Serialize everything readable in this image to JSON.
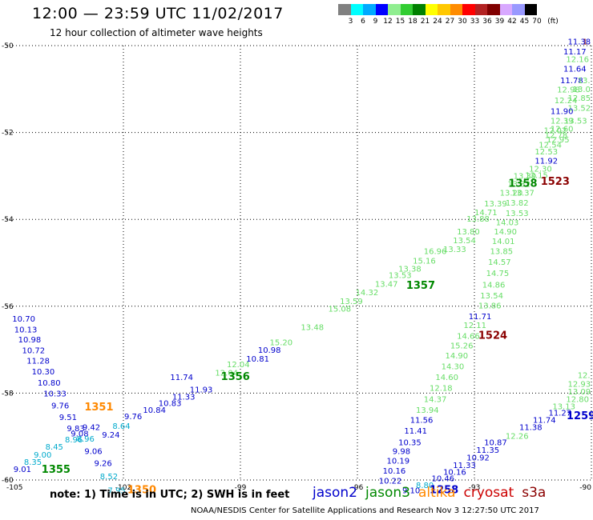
{
  "header": {
    "title": "12:00 — 23:59 UTC 11/02/2017",
    "subtitle": "12 hour collection of altimeter wave heights"
  },
  "color_scale": {
    "labels": [
      "3",
      "6",
      "9",
      "12",
      "15",
      "18",
      "21",
      "24",
      "27",
      "30",
      "33",
      "36",
      "39",
      "42",
      "45",
      "70"
    ],
    "unit": "(ft)",
    "colors": [
      "#808080",
      "#00ffff",
      "#00aaff",
      "#0000ff",
      "#90ee90",
      "#32cd32",
      "#008000",
      "#ffff00",
      "#ffc800",
      "#ff8c00",
      "#ff0000",
      "#b22222",
      "#800000",
      "#d8a8ff",
      "#9999ff",
      "#000000"
    ]
  },
  "chart_data": {
    "type": "map",
    "xlim": [
      -105,
      -90
    ],
    "ylim": [
      -60,
      -50
    ],
    "x_ticks": [
      -105,
      -102,
      -99,
      -96,
      -93,
      -90
    ],
    "y_ticks": [
      -50,
      -52,
      -54,
      -56,
      -58,
      -60
    ],
    "x_tick_labels": [
      "-105",
      "-102",
      "-99",
      "-96",
      "-93",
      "-90"
    ],
    "y_tick_labels": [
      "-50",
      "-52",
      "-54",
      "-56",
      "-58",
      "-60"
    ],
    "grid": "dotted",
    "track_colors": {
      "jason2": "#0000cc",
      "jason3": "#008800",
      "altika": "#ff8800",
      "cryosat": "#cc0000",
      "s3a": "#8b0000",
      "lightgreen": "#66dd66",
      "cyan": "#00aacc"
    },
    "points": [
      {
        "text": "1.",
        "x": -90.08,
        "y": -49.97,
        "track": "s3a"
      },
      {
        "text": "11.38",
        "x": -90.6,
        "y": -49.97,
        "track": "jason2"
      },
      {
        "text": "11.17",
        "x": -90.72,
        "y": -50.2,
        "track": "jason2"
      },
      {
        "text": "12.16",
        "x": -90.65,
        "y": -50.38,
        "track": "lightgreen"
      },
      {
        "text": "11.64",
        "x": -90.72,
        "y": -50.6,
        "track": "jason2"
      },
      {
        "text": "11.78",
        "x": -90.8,
        "y": -50.87,
        "track": "jason2"
      },
      {
        "text": "13.",
        "x": -89.98,
        "y": -50.87,
        "track": "lightgreen"
      },
      {
        "text": "12.98",
        "x": -90.88,
        "y": -51.08,
        "track": "lightgreen"
      },
      {
        "text": "13.0",
        "x": -90.1,
        "y": -51.07,
        "track": "lightgreen"
      },
      {
        "text": "12.85",
        "x": -90.25,
        "y": -51.27,
        "track": "lightgreen"
      },
      {
        "text": "12.24",
        "x": -90.95,
        "y": -51.33,
        "track": "lightgreen"
      },
      {
        "text": "13.52",
        "x": -90.5,
        "y": -51.5,
        "track": "lightgreen"
      },
      {
        "text": "11.90",
        "x": -91.05,
        "y": -51.57,
        "track": "jason2"
      },
      {
        "text": "12.39",
        "x": -91.05,
        "y": -51.8,
        "track": "lightgreen"
      },
      {
        "text": "13.53",
        "x": -90.7,
        "y": -51.8,
        "track": "lightgreen"
      },
      {
        "text": "12.02",
        "x": -91.22,
        "y": -52.02,
        "track": "lightgreen"
      },
      {
        "text": "12.60",
        "x": -91.05,
        "y": -51.98,
        "track": "lightgreen"
      },
      {
        "text": "12.78",
        "x": -91.2,
        "y": -52.13,
        "track": "lightgreen"
      },
      {
        "text": "12.95",
        "x": -91.15,
        "y": -52.23,
        "track": "lightgreen"
      },
      {
        "text": "12.54",
        "x": -91.35,
        "y": -52.35,
        "track": "lightgreen"
      },
      {
        "text": "12.53",
        "x": -91.45,
        "y": -52.5,
        "track": "lightgreen"
      },
      {
        "text": "11.92",
        "x": -91.45,
        "y": -52.72,
        "track": "jason2"
      },
      {
        "text": "12.30",
        "x": -91.6,
        "y": -52.9,
        "track": "lightgreen"
      },
      {
        "text": "12.15",
        "x": -91.7,
        "y": -53.05,
        "track": "lightgreen"
      },
      {
        "text": "13.39",
        "x": -92.0,
        "y": -53.07,
        "track": "lightgreen"
      },
      {
        "text": "13.32",
        "x": -92.15,
        "y": -53.25,
        "track": "lightgreen"
      },
      {
        "text": "1358",
        "x": -92.13,
        "y": -53.25,
        "track": "jason3"
      },
      {
        "text": "1523",
        "x": -91.3,
        "y": -53.2,
        "track": "s3a"
      },
      {
        "text": "13.37",
        "x": -92.05,
        "y": -53.45,
        "track": "lightgreen"
      },
      {
        "text": "13.20",
        "x": -92.35,
        "y": -53.45,
        "track": "lightgreen"
      },
      {
        "text": "13.82",
        "x": -92.2,
        "y": -53.68,
        "track": "lightgreen"
      },
      {
        "text": "13.39",
        "x": -92.75,
        "y": -53.7,
        "track": "lightgreen"
      },
      {
        "text": "14.71",
        "x": -93.0,
        "y": -53.9,
        "track": "lightgreen"
      },
      {
        "text": "13.53",
        "x": -92.2,
        "y": -53.92,
        "track": "lightgreen"
      },
      {
        "text": "13.88",
        "x": -93.2,
        "y": -54.05,
        "track": "lightgreen"
      },
      {
        "text": "14.03",
        "x": -92.45,
        "y": -54.13,
        "track": "lightgreen"
      },
      {
        "text": "14.90",
        "x": -92.5,
        "y": -54.35,
        "track": "lightgreen"
      },
      {
        "text": "13.80",
        "x": -93.45,
        "y": -54.35,
        "track": "lightgreen"
      },
      {
        "text": "13.54",
        "x": -93.55,
        "y": -54.55,
        "track": "lightgreen"
      },
      {
        "text": "14.01",
        "x": -92.55,
        "y": -54.57,
        "track": "lightgreen"
      },
      {
        "text": "13.33",
        "x": -93.8,
        "y": -54.75,
        "track": "lightgreen"
      },
      {
        "text": "16.96",
        "x": -94.3,
        "y": -54.8,
        "track": "lightgreen"
      },
      {
        "text": "13.85",
        "x": -92.6,
        "y": -54.8,
        "track": "lightgreen"
      },
      {
        "text": "15.16",
        "x": -94.58,
        "y": -55.02,
        "track": "lightgreen"
      },
      {
        "text": "14.57",
        "x": -92.65,
        "y": -55.05,
        "track": "lightgreen"
      },
      {
        "text": "13.38",
        "x": -94.95,
        "y": -55.2,
        "track": "lightgreen"
      },
      {
        "text": "14.75",
        "x": -92.7,
        "y": -55.3,
        "track": "lightgreen"
      },
      {
        "text": "13.53",
        "x": -95.2,
        "y": -55.35,
        "track": "lightgreen"
      },
      {
        "text": "1357",
        "x": -94.75,
        "y": -55.6,
        "track": "jason3"
      },
      {
        "text": "13.47",
        "x": -95.55,
        "y": -55.55,
        "track": "lightgreen"
      },
      {
        "text": "14.86",
        "x": -92.8,
        "y": -55.57,
        "track": "lightgreen"
      },
      {
        "text": "14.32",
        "x": -96.05,
        "y": -55.75,
        "track": "lightgreen"
      },
      {
        "text": "13.54",
        "x": -92.85,
        "y": -55.82,
        "track": "lightgreen"
      },
      {
        "text": "13.59",
        "x": -96.45,
        "y": -55.95,
        "track": "lightgreen"
      },
      {
        "text": "13.86",
        "x": -92.9,
        "y": -56.05,
        "track": "lightgreen"
      },
      {
        "text": "15.08",
        "x": -96.75,
        "y": -56.12,
        "track": "lightgreen"
      },
      {
        "text": "11.71",
        "x": -93.15,
        "y": -56.3,
        "track": "jason2"
      },
      {
        "text": "13.48",
        "x": -97.45,
        "y": -56.55,
        "track": "lightgreen"
      },
      {
        "text": "12.11",
        "x": -93.28,
        "y": -56.5,
        "track": "lightgreen"
      },
      {
        "text": "1524",
        "x": -92.9,
        "y": -56.75,
        "track": "s3a"
      },
      {
        "text": "14.66",
        "x": -93.45,
        "y": -56.75,
        "track": "lightgreen"
      },
      {
        "text": "15.20",
        "x": -98.25,
        "y": -56.9,
        "track": "lightgreen"
      },
      {
        "text": "15.26",
        "x": -93.62,
        "y": -56.97,
        "track": "lightgreen"
      },
      {
        "text": "10.98",
        "x": -98.55,
        "y": -57.07,
        "track": "jason2"
      },
      {
        "text": "14.90",
        "x": -93.75,
        "y": -57.2,
        "track": "lightgreen"
      },
      {
        "text": "10.81",
        "x": -98.85,
        "y": -57.27,
        "track": "jason2"
      },
      {
        "text": "12.04",
        "x": -99.35,
        "y": -57.4,
        "track": "lightgreen"
      },
      {
        "text": "14.30",
        "x": -93.85,
        "y": -57.45,
        "track": "lightgreen"
      },
      {
        "text": "12.04",
        "x": -99.65,
        "y": -57.6,
        "track": "lightgreen"
      },
      {
        "text": "1356",
        "x": -99.5,
        "y": -57.7,
        "track": "jason3"
      },
      {
        "text": "14.60",
        "x": -94.0,
        "y": -57.7,
        "track": "lightgreen"
      },
      {
        "text": "11.93",
        "x": -100.3,
        "y": -57.98,
        "track": "jason2"
      },
      {
        "text": "11.74",
        "x": -100.8,
        "y": -57.7,
        "track": "jason2"
      },
      {
        "text": "12.18",
        "x": -94.15,
        "y": -57.95,
        "track": "lightgreen"
      },
      {
        "text": "11.33",
        "x": -100.75,
        "y": -58.15,
        "track": "jason2"
      },
      {
        "text": "10.83",
        "x": -101.1,
        "y": -58.3,
        "track": "jason2"
      },
      {
        "text": "14.37",
        "x": -94.3,
        "y": -58.2,
        "track": "lightgreen"
      },
      {
        "text": "10.84",
        "x": -101.5,
        "y": -58.45,
        "track": "jason2"
      },
      {
        "text": "9.76",
        "x": -101.98,
        "y": -58.6,
        "track": "jason2"
      },
      {
        "text": "13.94",
        "x": -94.5,
        "y": -58.45,
        "track": "lightgreen"
      },
      {
        "text": "11.56",
        "x": -94.65,
        "y": -58.68,
        "track": "jason2"
      },
      {
        "text": "8.64",
        "x": -102.28,
        "y": -58.82,
        "track": "cyan"
      },
      {
        "text": "9.24",
        "x": -102.55,
        "y": -59.02,
        "track": "jason2"
      },
      {
        "text": "11.41",
        "x": -94.8,
        "y": -58.93,
        "track": "jason2"
      },
      {
        "text": "10.35",
        "x": -94.95,
        "y": -59.2,
        "track": "jason2"
      },
      {
        "text": "9.98",
        "x": -95.1,
        "y": -59.4,
        "track": "jason2"
      },
      {
        "text": "10.19",
        "x": -95.25,
        "y": -59.62,
        "track": "jason2"
      },
      {
        "text": "10.16",
        "x": -95.35,
        "y": -59.85,
        "track": "jason2"
      },
      {
        "text": "10.22",
        "x": -95.45,
        "y": -60.08,
        "track": "jason2"
      },
      {
        "text": "9.10",
        "x": -94.85,
        "y": -60.3,
        "track": "jason2"
      },
      {
        "text": "8.80",
        "x": -94.5,
        "y": -60.18,
        "track": "cyan"
      },
      {
        "text": "1258",
        "x": -94.15,
        "y": -60.3,
        "track": "jason2"
      },
      {
        "text": "10.46",
        "x": -94.1,
        "y": -60.03,
        "track": "jason2"
      },
      {
        "text": "10.16",
        "x": -93.8,
        "y": -59.88,
        "track": "jason2"
      },
      {
        "text": "11.33",
        "x": -93.55,
        "y": -59.72,
        "track": "jason2"
      },
      {
        "text": "10.92",
        "x": -93.2,
        "y": -59.55,
        "track": "jason2"
      },
      {
        "text": "11.35",
        "x": -92.95,
        "y": -59.37,
        "track": "jason2"
      },
      {
        "text": "10.87",
        "x": -92.75,
        "y": -59.2,
        "track": "jason2"
      },
      {
        "text": "12.26",
        "x": -92.2,
        "y": -59.05,
        "track": "lightgreen"
      },
      {
        "text": "11.38",
        "x": -91.85,
        "y": -58.85,
        "track": "jason2"
      },
      {
        "text": "11.74",
        "x": -91.5,
        "y": -58.68,
        "track": "jason2"
      },
      {
        "text": "11.27",
        "x": -91.1,
        "y": -58.52,
        "track": "jason2"
      },
      {
        "text": "1259",
        "x": -90.45,
        "y": -58.6,
        "track": "jason2"
      },
      {
        "text": "13.13",
        "x": -91.0,
        "y": -58.37,
        "track": "lightgreen"
      },
      {
        "text": "12.80",
        "x": -90.65,
        "y": -58.2,
        "track": "lightgreen"
      },
      {
        "text": "13.09",
        "x": -90.35,
        "y": -58.03,
        "track": "lightgreen"
      },
      {
        "text": "12.93",
        "x": -90.1,
        "y": -57.85,
        "track": "lightgreen"
      },
      {
        "text": "12.",
        "x": -89.98,
        "y": -57.65,
        "track": "lightgreen"
      },
      {
        "text": "10.70",
        "x": -104.85,
        "y": -56.35,
        "track": "jason2"
      },
      {
        "text": "10.13",
        "x": -104.8,
        "y": -56.6,
        "track": "jason2"
      },
      {
        "text": "10.98",
        "x": -104.7,
        "y": -56.83,
        "track": "jason2"
      },
      {
        "text": "10.72",
        "x": -104.6,
        "y": -57.08,
        "track": "jason2"
      },
      {
        "text": "11.28",
        "x": -104.48,
        "y": -57.32,
        "track": "jason2"
      },
      {
        "text": "10.30",
        "x": -104.35,
        "y": -57.57,
        "track": "jason2"
      },
      {
        "text": "10.80",
        "x": -104.2,
        "y": -57.83,
        "track": "jason2"
      },
      {
        "text": "10.33",
        "x": -104.05,
        "y": -58.08,
        "track": "jason2"
      },
      {
        "text": "9.76",
        "x": -103.85,
        "y": -58.35,
        "track": "jason2"
      },
      {
        "text": "1351",
        "x": -103.0,
        "y": -58.4,
        "track": "altika"
      },
      {
        "text": "9.51",
        "x": -103.65,
        "y": -58.62,
        "track": "jason2"
      },
      {
        "text": "9.83",
        "x": -103.45,
        "y": -58.88,
        "track": "jason2"
      },
      {
        "text": "9.42",
        "x": -103.05,
        "y": -58.85,
        "track": "jason2"
      },
      {
        "text": "9.08",
        "x": -103.35,
        "y": -59.0,
        "track": "jason2"
      },
      {
        "text": "8.96",
        "x": -103.5,
        "y": -59.13,
        "track": "cyan"
      },
      {
        "text": "8.96",
        "x": -103.2,
        "y": -59.12,
        "track": "cyan"
      },
      {
        "text": "8.45",
        "x": -104.0,
        "y": -59.3,
        "track": "cyan"
      },
      {
        "text": "9.06",
        "x": -103.0,
        "y": -59.4,
        "track": "jason2"
      },
      {
        "text": "9.00",
        "x": -104.3,
        "y": -59.48,
        "track": "cyan"
      },
      {
        "text": "8.35",
        "x": -104.55,
        "y": -59.65,
        "track": "cyan"
      },
      {
        "text": "9.01",
        "x": -104.82,
        "y": -59.82,
        "track": "jason2"
      },
      {
        "text": "1355",
        "x": -104.1,
        "y": -59.83,
        "track": "jason3"
      },
      {
        "text": "9.26",
        "x": -102.75,
        "y": -59.68,
        "track": "jason2"
      },
      {
        "text": "8.52",
        "x": -102.6,
        "y": -59.98,
        "track": "cyan"
      },
      {
        "text": "7.95",
        "x": -102.4,
        "y": -60.3,
        "track": "cyan"
      },
      {
        "text": "1350",
        "x": -101.9,
        "y": -60.3,
        "track": "altika"
      }
    ]
  },
  "footer": {
    "note": "note: 1) Time is in UTC; 2) SWH is in feet",
    "sources": [
      {
        "name": "jason2",
        "color": "#0000cc"
      },
      {
        "name": "jason3",
        "color": "#008800"
      },
      {
        "name": "altika",
        "color": "#ff8800"
      },
      {
        "name": "cryosat",
        "color": "#cc0000"
      },
      {
        "name": "s3a",
        "color": "#8b0000"
      }
    ],
    "credit": "NOAA/NESDIS Center for Satellite Applications and Research   Nov  3 12:27:50 UTC 2017"
  }
}
